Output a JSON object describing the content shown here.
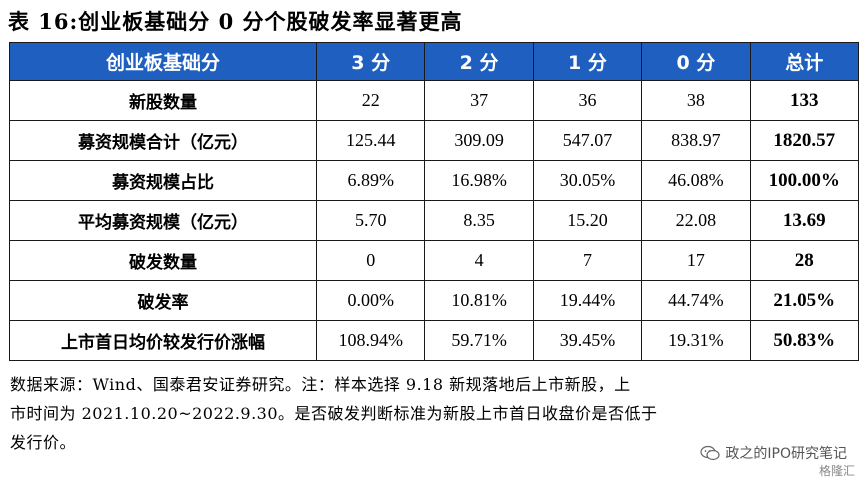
{
  "title": "表 16:创业板基础分 0 分个股破发率显著更高",
  "table": {
    "headers": [
      "创业板基础分",
      "3 分",
      "2 分",
      "1 分",
      "0 分",
      "总计"
    ],
    "rows": [
      {
        "label": "新股数量",
        "values": [
          "22",
          "37",
          "36",
          "38"
        ],
        "total": "133"
      },
      {
        "label": "募资规模合计（亿元）",
        "values": [
          "125.44",
          "309.09",
          "547.07",
          "838.97"
        ],
        "total": "1820.57"
      },
      {
        "label": "募资规模占比",
        "values": [
          "6.89%",
          "16.98%",
          "30.05%",
          "46.08%"
        ],
        "total": "100.00%"
      },
      {
        "label": "平均募资规模（亿元）",
        "values": [
          "5.70",
          "8.35",
          "15.20",
          "22.08"
        ],
        "total": "13.69"
      },
      {
        "label": "破发数量",
        "values": [
          "0",
          "4",
          "7",
          "17"
        ],
        "total": "28"
      },
      {
        "label": "破发率",
        "values": [
          "0.00%",
          "10.81%",
          "19.44%",
          "44.74%"
        ],
        "total": "21.05%"
      },
      {
        "label": "上市首日均价较发行价涨幅",
        "values": [
          "108.94%",
          "59.71%",
          "39.45%",
          "19.31%"
        ],
        "total": "50.83%"
      }
    ]
  },
  "note": {
    "line1": "数据来源：Wind、国泰君安证券研究。注：样本选择 9.18 新规落地后上市新股，上",
    "line2": "市时间为 2021.10.20~2022.9.30。是否破发判断标准为新股上市首日收盘价是否低于",
    "line3": "发行价。"
  },
  "watermark": {
    "text": "政之的IPO研究笔记",
    "icon": "wechat-icon",
    "brand": "格隆汇"
  },
  "colors": {
    "header_bg": "#1f5fbf",
    "header_text": "#ffffff"
  }
}
